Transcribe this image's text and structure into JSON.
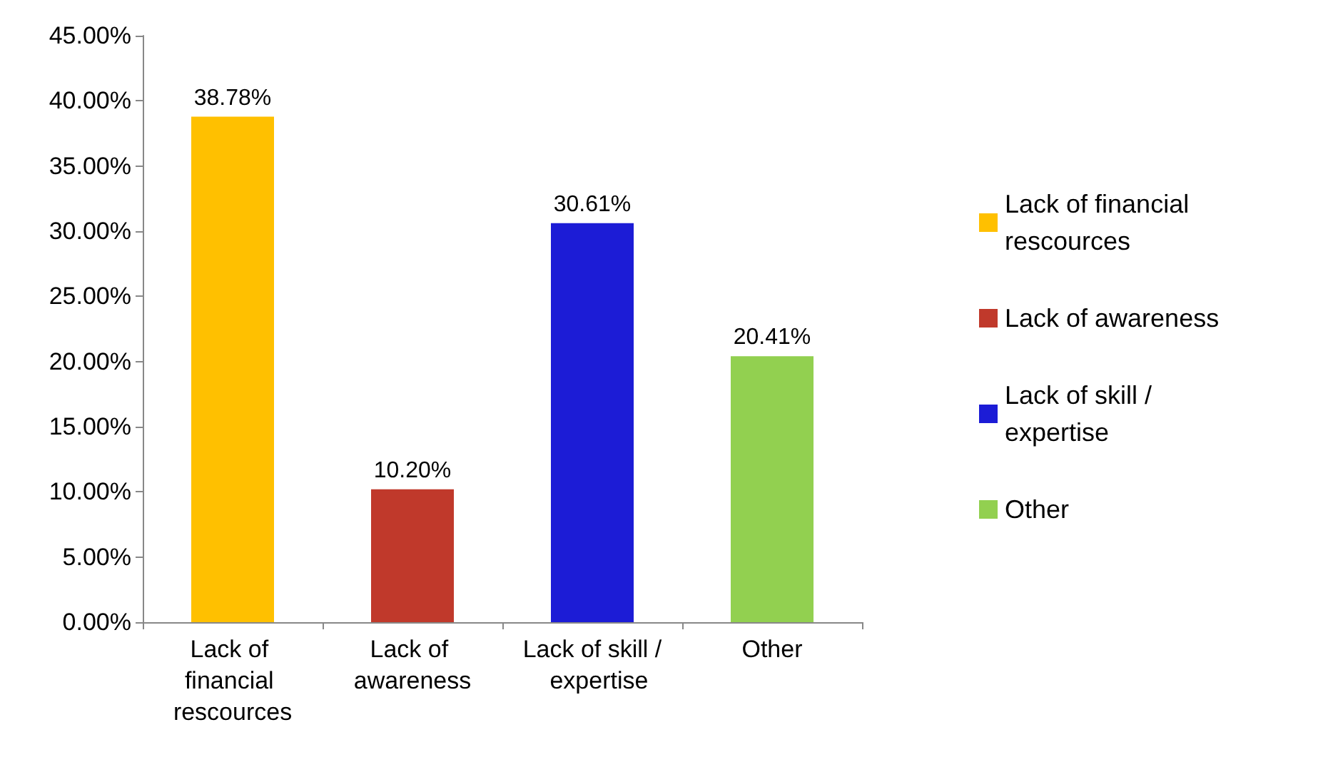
{
  "chart_data": {
    "type": "bar",
    "categories": [
      "Lack of financial rescources",
      "Lack of awareness",
      "Lack of skill /  expertise",
      "Other"
    ],
    "series": [
      {
        "name": "Lack of financial rescources",
        "color": "#ffc000",
        "values": [
          38.78,
          null,
          null,
          null
        ],
        "value_labels": [
          "38.78%",
          null,
          null,
          null
        ]
      },
      {
        "name": "Lack of awareness",
        "color": "#c0392b",
        "values": [
          null,
          10.2,
          null,
          null
        ],
        "value_labels": [
          null,
          "10.20%",
          null,
          null
        ]
      },
      {
        "name": "Lack of skill /  expertise",
        "color": "#1c1cd6",
        "values": [
          null,
          null,
          30.61,
          null
        ],
        "value_labels": [
          null,
          null,
          "30.61%",
          null
        ]
      },
      {
        "name": "Other",
        "color": "#92d050",
        "values": [
          null,
          null,
          null,
          20.41
        ],
        "value_labels": [
          null,
          null,
          null,
          "20.41%"
        ]
      }
    ],
    "ylim": [
      0,
      45
    ],
    "yticks": [
      {
        "value": 0,
        "label": "0.00%"
      },
      {
        "value": 5,
        "label": "5.00%"
      },
      {
        "value": 10,
        "label": "10.00%"
      },
      {
        "value": 15,
        "label": "15.00%"
      },
      {
        "value": 20,
        "label": "20.00%"
      },
      {
        "value": 25,
        "label": "25.00%"
      },
      {
        "value": 30,
        "label": "30.00%"
      },
      {
        "value": 35,
        "label": "35.00%"
      },
      {
        "value": 40,
        "label": "40.00%"
      },
      {
        "value": 45,
        "label": "45.00%"
      }
    ],
    "grid": false,
    "legend": "right"
  }
}
